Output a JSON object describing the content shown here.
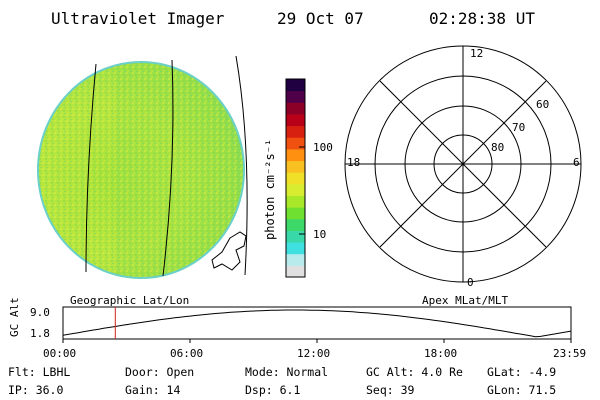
{
  "header": {
    "title": "Ultraviolet Imager",
    "date": "29 Oct 07",
    "time": "02:28:38 UT"
  },
  "colorbar": {
    "unit_label": "photon cm⁻²s⁻¹",
    "tick_100": "100",
    "tick_10": "10",
    "colors": [
      "#e0e0e0",
      "#b8ecec",
      "#40e0e0",
      "#38d8a8",
      "#3cd868",
      "#70e030",
      "#a8e828",
      "#d8ec30",
      "#f0e028",
      "#f8c020",
      "#ff9010",
      "#f05010",
      "#d82010",
      "#b80018",
      "#8c0028",
      "#500048",
      "#200040"
    ]
  },
  "left_map": {
    "label": "Geographic Lat/Lon"
  },
  "right_map": {
    "label": "Apex MLat/MLT",
    "mlt_labels": {
      "top": "12",
      "left": "18",
      "right": "6",
      "bottom": "0"
    },
    "lat_labels": [
      "60",
      "70",
      "80"
    ]
  },
  "timeline": {
    "ylabel": "GC Alt",
    "y_ticks": [
      "9.0",
      "1.8"
    ],
    "x_ticks": [
      "00:00",
      "06:00",
      "12:00",
      "18:00",
      "23:59"
    ],
    "current_fraction": 0.103
  },
  "info": {
    "flt": "Flt: LBHL",
    "door": "Door: Open",
    "mode": "Mode: Normal",
    "gcalt": "GC Alt: 4.0 Re",
    "glat": "GLat:  -4.9",
    "ip": "IP: 36.0",
    "gain": "Gain: 14",
    "dsp": "Dsp:    6.1",
    "seq": "Seq: 39",
    "glon": "GLon:  71.5"
  }
}
